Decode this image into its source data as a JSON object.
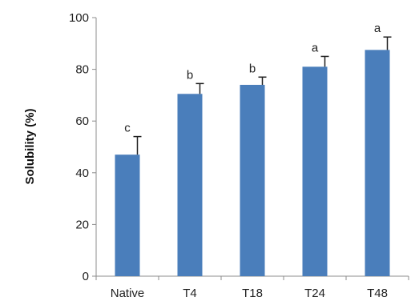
{
  "chart_data": {
    "type": "bar",
    "title": "",
    "xlabel": "",
    "ylabel": "Solubility (%)",
    "ylim": [
      0,
      100
    ],
    "yticks": [
      0,
      20,
      40,
      60,
      80,
      100
    ],
    "grid": false,
    "categories": [
      "Native",
      "T4",
      "T18",
      "T24",
      "T48"
    ],
    "values": [
      47,
      70.5,
      74,
      81,
      87.5
    ],
    "error_plus": [
      7,
      4,
      3,
      4,
      5
    ],
    "significance": [
      "c",
      "b",
      "b",
      "a",
      "a"
    ],
    "bar_color": "#4a7ebb"
  }
}
